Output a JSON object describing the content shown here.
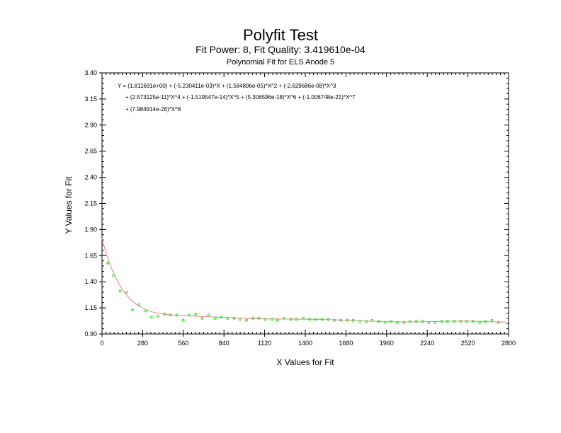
{
  "chart_data": {
    "type": "scatter",
    "title": "Polyfit Test",
    "subtitle": "Fit Power: 8, Fit Quality: 3.419610e-04",
    "subsubtitle": "Polynomial Fit for ELS Anode 5",
    "xlabel": "X Values for Fit",
    "ylabel": "Y Values for Fit",
    "xlim": [
      0,
      2800
    ],
    "ylim": [
      0.9,
      3.4
    ],
    "x_ticks": [
      0,
      280,
      560,
      840,
      1120,
      1400,
      1680,
      1960,
      2240,
      2520,
      2800
    ],
    "x_tick_labels": [
      "0",
      "280",
      "560",
      "840",
      "1120",
      "1400",
      "1680",
      "1960",
      "2240",
      "2520",
      "2800"
    ],
    "y_ticks": [
      0.9,
      1.15,
      1.4,
      1.65,
      1.9,
      2.15,
      2.4,
      2.65,
      2.9,
      3.15,
      3.4
    ],
    "y_tick_labels": [
      "0.90",
      "1.15",
      "1.40",
      "1.65",
      "1.90",
      "2.15",
      "2.40",
      "2.65",
      "2.90",
      "3.15",
      "3.40"
    ],
    "equation_lines": [
      "Y = (1.811691e+00) + (-5.230411e-03)*X + (1.584896e-05)*X^2 + (-2.629686e-08)*X^3",
      "+ (2.573125e-11)*X^4 + (-1.519547e-14)*X^5 + (5.306596e-18)*X^6 + (-1.006748e-21)*X^7",
      "+ (7.984914e-26)*X^8"
    ],
    "grid": false,
    "fit_color": "#f08080",
    "point_color": "#33dd33",
    "series": [
      {
        "type": "scatter",
        "x": [
          40,
          80,
          125,
          170,
          210,
          255,
          300,
          340,
          385,
          430,
          470,
          515,
          560,
          600,
          645,
          690,
          735,
          780,
          820,
          865,
          910,
          950,
          995,
          1040,
          1080,
          1125,
          1170,
          1210,
          1255,
          1300,
          1340,
          1385,
          1430,
          1470,
          1515,
          1560,
          1600,
          1645,
          1690,
          1730,
          1775,
          1820,
          1860,
          1905,
          1950,
          1990,
          2035,
          2080,
          2120,
          2165,
          2210,
          2250,
          2295,
          2340,
          2380,
          2425,
          2470,
          2510,
          2555,
          2600,
          2640,
          2685,
          2730
        ],
        "y": [
          1.58,
          1.46,
          1.31,
          1.3,
          1.13,
          1.18,
          1.12,
          1.06,
          1.07,
          1.09,
          1.08,
          1.08,
          1.03,
          1.08,
          1.09,
          1.05,
          1.08,
          1.05,
          1.06,
          1.05,
          1.05,
          1.04,
          1.03,
          1.05,
          1.05,
          1.04,
          1.04,
          1.03,
          1.05,
          1.04,
          1.04,
          1.05,
          1.04,
          1.04,
          1.04,
          1.04,
          1.03,
          1.03,
          1.03,
          1.03,
          1.02,
          1.02,
          1.03,
          1.02,
          1.01,
          1.02,
          1.01,
          1.01,
          1.02,
          1.02,
          1.02,
          1.01,
          1.01,
          1.02,
          1.02,
          1.02,
          1.02,
          1.02,
          1.02,
          1.01,
          1.02,
          1.03,
          1.01
        ]
      }
    ],
    "fit_coefficients": [
      1.811691,
      -0.005230411,
      1.584896e-05,
      -2.629686e-08,
      2.573125e-11,
      -1.519547e-14,
      5.306596e-18,
      -1.006748e-21,
      7.984914e-26
    ]
  }
}
